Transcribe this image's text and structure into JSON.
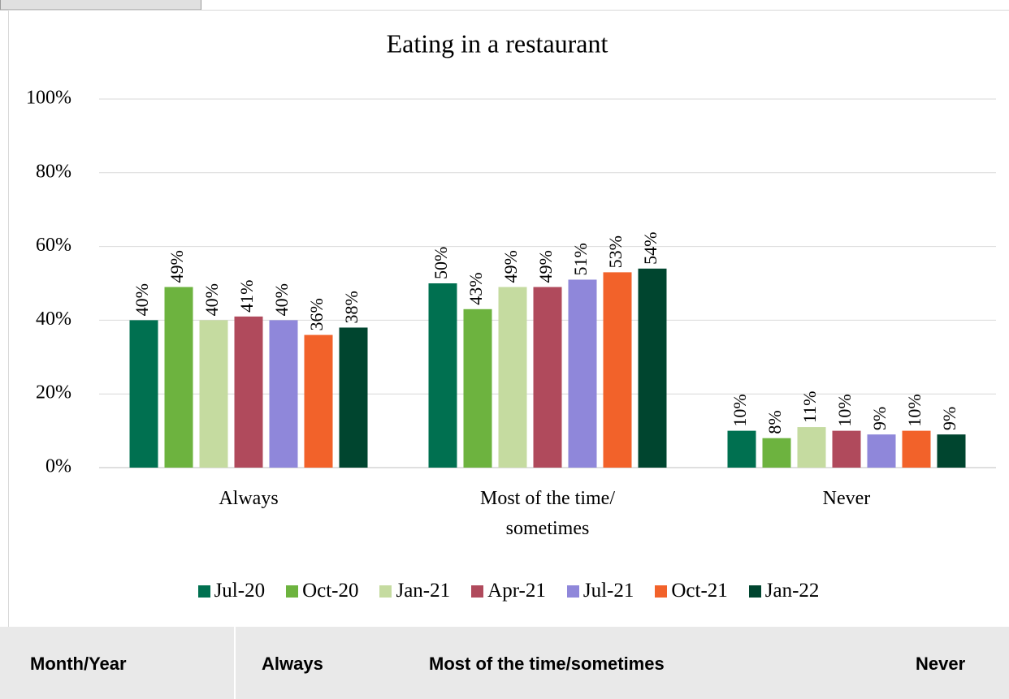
{
  "chart_data": {
    "type": "bar",
    "title": "Eating in a restaurant",
    "categories": [
      "Always",
      "Most of the time/\nsometimes",
      "Never"
    ],
    "series": [
      {
        "name": "Jul-20",
        "color": "#007050",
        "values": [
          40,
          50,
          10
        ],
        "value_labels": [
          "40%",
          "50%",
          "10%"
        ]
      },
      {
        "name": "Oct-20",
        "color": "#6db33f",
        "values": [
          49,
          43,
          8
        ],
        "value_labels": [
          "49%",
          "43%",
          "8%"
        ]
      },
      {
        "name": "Jan-21",
        "color": "#c5dba0",
        "values": [
          40,
          49,
          11
        ],
        "value_labels": [
          "40%",
          "49%",
          "11%"
        ]
      },
      {
        "name": "Apr-21",
        "color": "#b04a5c",
        "values": [
          41,
          49,
          10
        ],
        "value_labels": [
          "41%",
          "49%",
          "10%"
        ]
      },
      {
        "name": "Jul-21",
        "color": "#8f87da",
        "values": [
          40,
          51,
          9
        ],
        "value_labels": [
          "40%",
          "51%",
          "9%"
        ]
      },
      {
        "name": "Oct-21",
        "color": "#f2622a",
        "values": [
          36,
          53,
          10
        ],
        "value_labels": [
          "36%",
          "53%",
          "10%"
        ]
      },
      {
        "name": "Jan-22",
        "color": "#00452f",
        "values": [
          38,
          54,
          9
        ],
        "value_labels": [
          "38%",
          "54%",
          "9%"
        ]
      }
    ],
    "ylim": [
      0,
      100
    ],
    "yticks": [
      {
        "value": 0,
        "label": "0%"
      },
      {
        "value": 20,
        "label": "20%"
      },
      {
        "value": 40,
        "label": "40%"
      },
      {
        "value": 60,
        "label": "60%"
      },
      {
        "value": 80,
        "label": "80%"
      },
      {
        "value": 100,
        "label": "100%"
      }
    ],
    "grid": true,
    "legend": "bottom"
  },
  "table": {
    "headers": [
      "Month/Year",
      "Always",
      "Most of the time/sometimes",
      "Never"
    ]
  }
}
